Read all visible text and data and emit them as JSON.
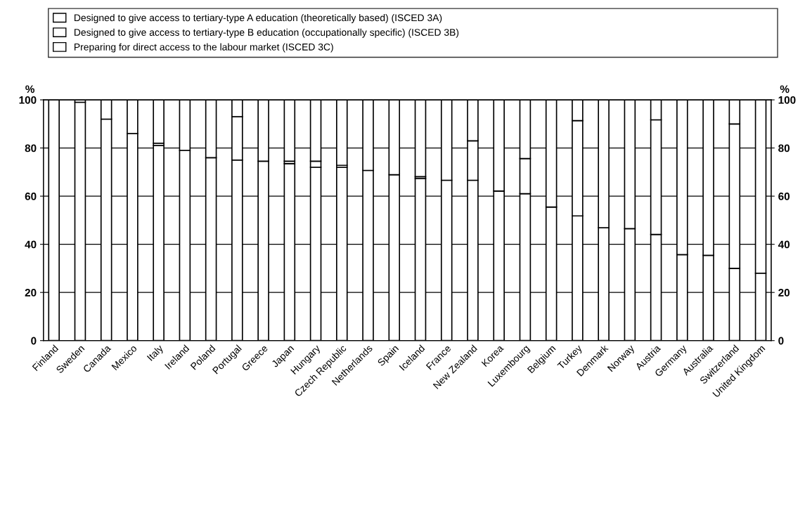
{
  "chart_data": {
    "type": "bar",
    "stacked": true,
    "ylabel": "%",
    "y2label": "%",
    "categories": [
      "Finland",
      "Sweden",
      "Canada",
      "Mexico",
      "Italy",
      "Ireland",
      "Poland",
      "Portugal",
      "Greece",
      "Japan",
      "Hungary",
      "Czech Republic",
      "Netherlands",
      "Spain",
      "Iceland",
      "France",
      "New Zealand",
      "Korea",
      "Luxembourg",
      "Belgium",
      "Turkey",
      "Denmark",
      "Norway",
      "Austria",
      "Germany",
      "Australia",
      "Switzerland",
      "United Kingdom"
    ],
    "series": [
      {
        "name": "Designed to give access to tertiary-type A education (theoretically based) (ISCED 3A)",
        "color": "#ffffff",
        "values": [
          100,
          99,
          92,
          86,
          81,
          79,
          76,
          75,
          74.5,
          73.5,
          72,
          72,
          70.7,
          68.9,
          67.3,
          66.6,
          66.6,
          62.1,
          61,
          55.5,
          51.8,
          46.9,
          46.5,
          44.1,
          35.7,
          35.4,
          30,
          28
        ]
      },
      {
        "name": "Designed to give access to tertiary-type B education (occupationally specific) (ISCED 3B)",
        "color": "#ffffff",
        "values": [
          null,
          null,
          null,
          null,
          1,
          null,
          null,
          18,
          null,
          1,
          2.5,
          0.8,
          null,
          null,
          0.8,
          null,
          16.4,
          null,
          14.6,
          null,
          39.6,
          null,
          null,
          47.6,
          null,
          null,
          60,
          null
        ]
      },
      {
        "name": "Preparing for direct access to the labour market (ISCED 3C)",
        "color": "#ffffff",
        "values": [
          null,
          1,
          8,
          14,
          18,
          21,
          24,
          7,
          25.5,
          25.5,
          25.5,
          27.2,
          29.3,
          31.1,
          31.9,
          33.4,
          17,
          37.9,
          24.4,
          44.5,
          8.6,
          53.1,
          53.5,
          8.3,
          64.3,
          64.6,
          10,
          72
        ]
      }
    ],
    "ylim": [
      0,
      100
    ],
    "yticks": [
      0,
      20,
      40,
      60,
      80,
      100
    ],
    "y2lim": [
      0,
      100
    ],
    "y2ticks": [
      0,
      20,
      40,
      60,
      80,
      100
    ],
    "grid": "y",
    "legend": "top"
  }
}
